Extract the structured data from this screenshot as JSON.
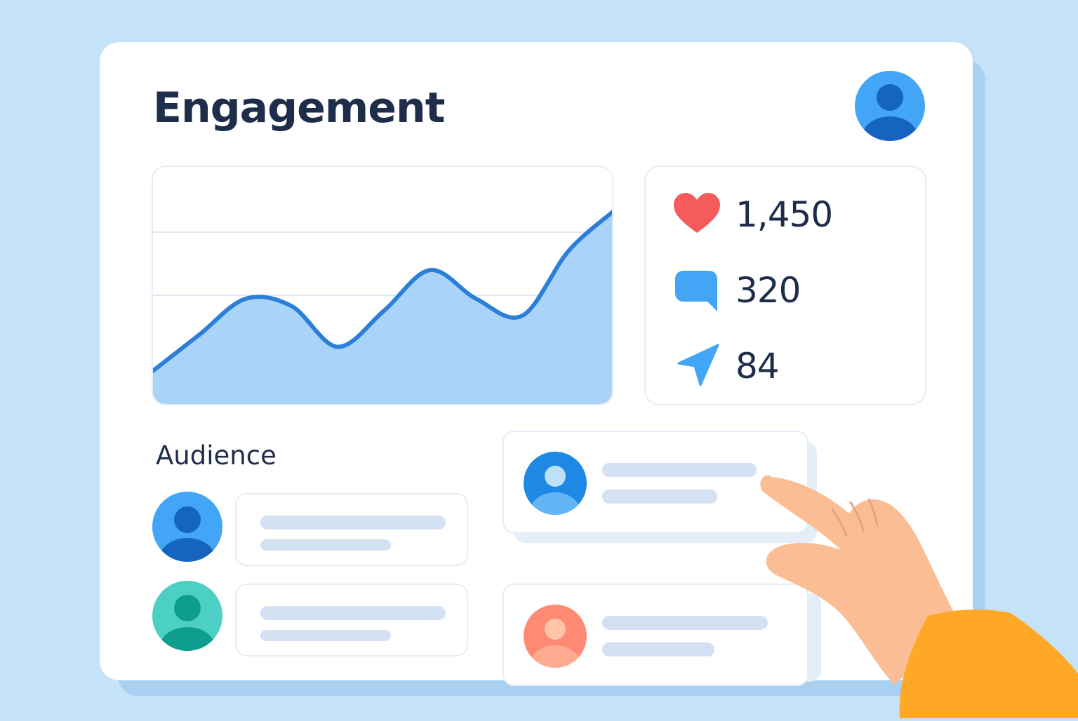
{
  "header": {
    "title": "Engagement"
  },
  "user": {
    "avatar_icon": "user-avatar-icon"
  },
  "chart_data": {
    "type": "area",
    "x": [
      0,
      1,
      2,
      3,
      4,
      5,
      6,
      7,
      8,
      9,
      10
    ],
    "values": [
      15,
      30,
      45,
      42,
      25,
      40,
      57,
      45,
      38,
      65,
      82
    ],
    "title": "",
    "xlabel": "",
    "ylabel": "",
    "ylim": [
      0,
      100
    ],
    "grid": true,
    "color": "#2b7fd8",
    "fill_color": "#aad4f7"
  },
  "stats": [
    {
      "icon": "heart-icon",
      "value": "1,450",
      "color": "#f45b5b"
    },
    {
      "icon": "comment-icon",
      "value": "320",
      "color": "#42a5f5"
    },
    {
      "icon": "share-icon",
      "value": "84",
      "color": "#42a5f5"
    }
  ],
  "audience": {
    "title": "Audience",
    "avatar_colors": [
      "#42a5f5",
      "#4dd0c4",
      "#1e88e5",
      "#ff8a73"
    ]
  }
}
